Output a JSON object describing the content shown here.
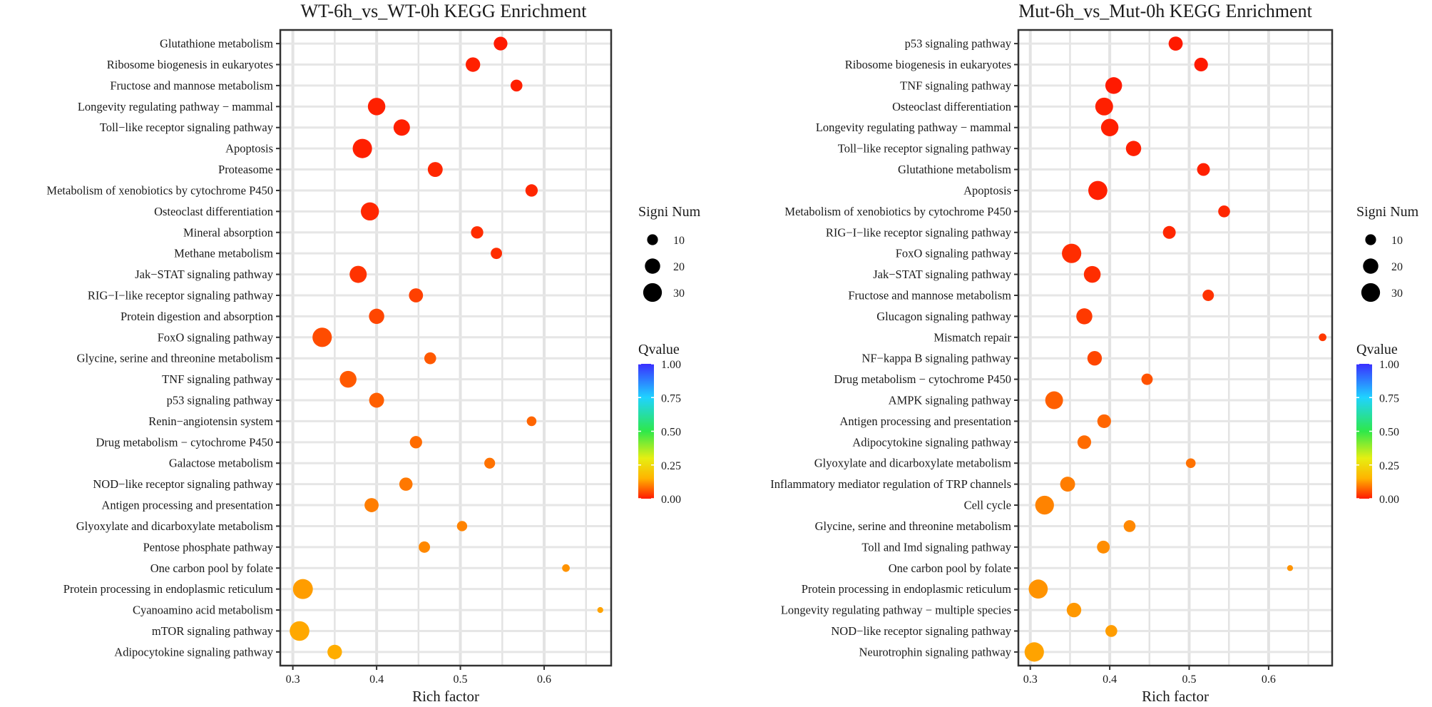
{
  "chart_data": [
    {
      "type": "scatter",
      "title": "WT-6h_vs_WT-0h KEGG Enrichment",
      "xlabel": "Rich factor",
      "ylabel": "",
      "xlim": [
        0.285,
        0.68
      ],
      "xticks": [
        "0.3",
        "0.4",
        "0.5",
        "0.6"
      ],
      "xtick_values": [
        0.3,
        0.4,
        0.5,
        0.6
      ],
      "size_legend": {
        "title": "Signi Num",
        "values": [
          10,
          20,
          30
        ],
        "labels": [
          "10",
          "20",
          "30"
        ]
      },
      "color_legend": {
        "title": "Qvalue",
        "ticks": [
          "1.00",
          "0.75",
          "0.50",
          "0.25",
          "0.00"
        ]
      },
      "points": [
        {
          "pathway": "Glutathione metabolism",
          "rich_factor": 0.548,
          "signi_num": 16,
          "qvalue": 0.0
        },
        {
          "pathway": "Ribosome biogenesis in eukaryotes",
          "rich_factor": 0.515,
          "signi_num": 18,
          "qvalue": 0.01
        },
        {
          "pathway": "Fructose and mannose metabolism",
          "rich_factor": 0.567,
          "signi_num": 12,
          "qvalue": 0.01
        },
        {
          "pathway": "Longevity regulating pathway − mammal",
          "rich_factor": 0.4,
          "signi_num": 26,
          "qvalue": 0.01
        },
        {
          "pathway": "Toll−like receptor signaling pathway",
          "rich_factor": 0.43,
          "signi_num": 23,
          "qvalue": 0.01
        },
        {
          "pathway": "Apoptosis",
          "rich_factor": 0.383,
          "signi_num": 32,
          "qvalue": 0.01
        },
        {
          "pathway": "Proteasome",
          "rich_factor": 0.47,
          "signi_num": 19,
          "qvalue": 0.02
        },
        {
          "pathway": "Metabolism of xenobiotics by cytochrome P450",
          "rich_factor": 0.585,
          "signi_num": 13,
          "qvalue": 0.02
        },
        {
          "pathway": "Osteoclast differentiation",
          "rich_factor": 0.392,
          "signi_num": 28,
          "qvalue": 0.02
        },
        {
          "pathway": "Mineral absorption",
          "rich_factor": 0.52,
          "signi_num": 13,
          "qvalue": 0.03
        },
        {
          "pathway": "Methane metabolism",
          "rich_factor": 0.543,
          "signi_num": 11,
          "qvalue": 0.03
        },
        {
          "pathway": "Jak−STAT signaling pathway",
          "rich_factor": 0.378,
          "signi_num": 25,
          "qvalue": 0.04
        },
        {
          "pathway": "RIG−I−like receptor signaling pathway",
          "rich_factor": 0.447,
          "signi_num": 17,
          "qvalue": 0.06
        },
        {
          "pathway": "Protein digestion and absorption",
          "rich_factor": 0.4,
          "signi_num": 20,
          "qvalue": 0.07
        },
        {
          "pathway": "FoxO signaling pathway",
          "rich_factor": 0.335,
          "signi_num": 32,
          "qvalue": 0.08
        },
        {
          "pathway": "Glycine, serine and threonine metabolism",
          "rich_factor": 0.464,
          "signi_num": 12,
          "qvalue": 0.1
        },
        {
          "pathway": "TNF signaling pathway",
          "rich_factor": 0.366,
          "signi_num": 24,
          "qvalue": 0.1
        },
        {
          "pathway": "p53 signaling pathway",
          "rich_factor": 0.4,
          "signi_num": 19,
          "qvalue": 0.11
        },
        {
          "pathway": "Renin−angiotensin system",
          "rich_factor": 0.585,
          "signi_num": 8,
          "qvalue": 0.12
        },
        {
          "pathway": "Drug metabolism − cytochrome P450",
          "rich_factor": 0.447,
          "signi_num": 13,
          "qvalue": 0.13
        },
        {
          "pathway": "Galactose metabolism",
          "rich_factor": 0.535,
          "signi_num": 10,
          "qvalue": 0.14
        },
        {
          "pathway": "NOD−like receptor signaling pathway",
          "rich_factor": 0.435,
          "signi_num": 15,
          "qvalue": 0.15
        },
        {
          "pathway": "Antigen processing and presentation",
          "rich_factor": 0.394,
          "signi_num": 17,
          "qvalue": 0.16
        },
        {
          "pathway": "Glyoxylate and dicarboxylate metabolism",
          "rich_factor": 0.502,
          "signi_num": 9,
          "qvalue": 0.17
        },
        {
          "pathway": "Pentose phosphate pathway",
          "rich_factor": 0.457,
          "signi_num": 11,
          "qvalue": 0.18
        },
        {
          "pathway": "One carbon pool by folate",
          "rich_factor": 0.626,
          "signi_num": 5,
          "qvalue": 0.2
        },
        {
          "pathway": "Protein processing in endoplasmic reticulum",
          "rich_factor": 0.312,
          "signi_num": 34,
          "qvalue": 0.22
        },
        {
          "pathway": "Cyanoamino acid metabolism",
          "rich_factor": 0.667,
          "signi_num": 3,
          "qvalue": 0.23
        },
        {
          "pathway": "mTOR signaling pathway",
          "rich_factor": 0.308,
          "signi_num": 33,
          "qvalue": 0.24
        },
        {
          "pathway": "Adipocytokine signaling pathway",
          "rich_factor": 0.35,
          "signi_num": 18,
          "qvalue": 0.25
        }
      ]
    },
    {
      "type": "scatter",
      "title": "Mut-6h_vs_Mut-0h KEGG Enrichment",
      "xlabel": "Rich factor",
      "ylabel": "",
      "xlim": [
        0.285,
        0.68
      ],
      "xticks": [
        "0.3",
        "0.4",
        "0.5",
        "0.6"
      ],
      "xtick_values": [
        0.3,
        0.4,
        0.5,
        0.6
      ],
      "size_legend": {
        "title": "Signi Num",
        "values": [
          10,
          20,
          30
        ],
        "labels": [
          "10",
          "20",
          "30"
        ]
      },
      "color_legend": {
        "title": "Qvalue",
        "ticks": [
          "1.00",
          "0.75",
          "0.50",
          "0.25",
          "0.00"
        ]
      },
      "points": [
        {
          "pathway": "p53 signaling pathway",
          "rich_factor": 0.483,
          "signi_num": 17,
          "qvalue": 0.0
        },
        {
          "pathway": "Ribosome biogenesis in eukaryotes",
          "rich_factor": 0.515,
          "signi_num": 16,
          "qvalue": 0.0
        },
        {
          "pathway": "TNF signaling pathway",
          "rich_factor": 0.405,
          "signi_num": 24,
          "qvalue": 0.0
        },
        {
          "pathway": "Osteoclast differentiation",
          "rich_factor": 0.393,
          "signi_num": 27,
          "qvalue": 0.01
        },
        {
          "pathway": "Longevity regulating pathway − mammal",
          "rich_factor": 0.4,
          "signi_num": 26,
          "qvalue": 0.01
        },
        {
          "pathway": "Toll−like receptor signaling pathway",
          "rich_factor": 0.43,
          "signi_num": 20,
          "qvalue": 0.01
        },
        {
          "pathway": "Glutathione metabolism",
          "rich_factor": 0.518,
          "signi_num": 14,
          "qvalue": 0.01
        },
        {
          "pathway": "Apoptosis",
          "rich_factor": 0.385,
          "signi_num": 31,
          "qvalue": 0.01
        },
        {
          "pathway": "Metabolism of xenobiotics by cytochrome P450",
          "rich_factor": 0.544,
          "signi_num": 12,
          "qvalue": 0.02
        },
        {
          "pathway": "RIG−I−like receptor signaling pathway",
          "rich_factor": 0.475,
          "signi_num": 14,
          "qvalue": 0.02
        },
        {
          "pathway": "FoxO signaling pathway",
          "rich_factor": 0.352,
          "signi_num": 32,
          "qvalue": 0.03
        },
        {
          "pathway": "Jak−STAT signaling pathway",
          "rich_factor": 0.378,
          "signi_num": 24,
          "qvalue": 0.03
        },
        {
          "pathway": "Fructose and mannose metabolism",
          "rich_factor": 0.524,
          "signi_num": 11,
          "qvalue": 0.04
        },
        {
          "pathway": "Glucagon signaling pathway",
          "rich_factor": 0.368,
          "signi_num": 22,
          "qvalue": 0.05
        },
        {
          "pathway": "Mismatch repair",
          "rich_factor": 0.668,
          "signi_num": 5,
          "qvalue": 0.05
        },
        {
          "pathway": "NF−kappa B signaling pathway",
          "rich_factor": 0.381,
          "signi_num": 18,
          "qvalue": 0.07
        },
        {
          "pathway": "Drug metabolism − cytochrome P450",
          "rich_factor": 0.447,
          "signi_num": 11,
          "qvalue": 0.09
        },
        {
          "pathway": "AMPK signaling pathway",
          "rich_factor": 0.33,
          "signi_num": 27,
          "qvalue": 0.11
        },
        {
          "pathway": "Antigen processing and presentation",
          "rich_factor": 0.393,
          "signi_num": 16,
          "qvalue": 0.12
        },
        {
          "pathway": "Adipocytokine signaling pathway",
          "rich_factor": 0.368,
          "signi_num": 16,
          "qvalue": 0.13
        },
        {
          "pathway": "Glyoxylate and dicarboxylate metabolism",
          "rich_factor": 0.502,
          "signi_num": 8,
          "qvalue": 0.14
        },
        {
          "pathway": "Inflammatory mediator regulation of TRP channels",
          "rich_factor": 0.347,
          "signi_num": 19,
          "qvalue": 0.16
        },
        {
          "pathway": "Cell cycle",
          "rich_factor": 0.318,
          "signi_num": 30,
          "qvalue": 0.17
        },
        {
          "pathway": "Glycine, serine and threonine metabolism",
          "rich_factor": 0.425,
          "signi_num": 12,
          "qvalue": 0.18
        },
        {
          "pathway": "Toll and Imd signaling pathway",
          "rich_factor": 0.392,
          "signi_num": 14,
          "qvalue": 0.19
        },
        {
          "pathway": "One carbon pool by folate",
          "rich_factor": 0.627,
          "signi_num": 3,
          "qvalue": 0.2
        },
        {
          "pathway": "Protein processing in endoplasmic reticulum",
          "rich_factor": 0.31,
          "signi_num": 31,
          "qvalue": 0.2
        },
        {
          "pathway": "Longevity regulating pathway − multiple species",
          "rich_factor": 0.355,
          "signi_num": 18,
          "qvalue": 0.21
        },
        {
          "pathway": "NOD−like receptor signaling pathway",
          "rich_factor": 0.402,
          "signi_num": 12,
          "qvalue": 0.22
        },
        {
          "pathway": "Neurotrophin signaling pathway",
          "rich_factor": 0.305,
          "signi_num": 32,
          "qvalue": 0.23
        }
      ]
    }
  ]
}
